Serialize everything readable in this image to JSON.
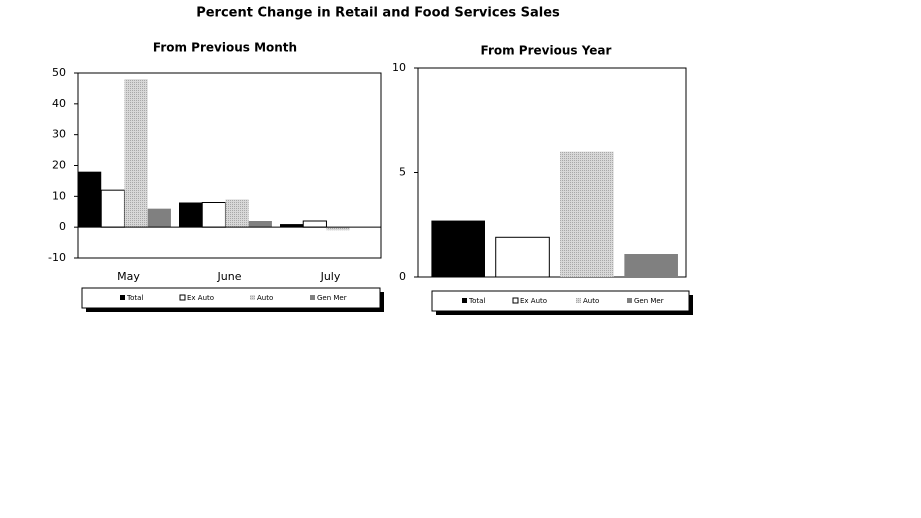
{
  "title": "Percent Change in Retail and Food Services Sales",
  "chart_data": [
    {
      "type": "bar",
      "title": "From Previous Month",
      "categories": [
        "May",
        "June",
        "July"
      ],
      "series": [
        {
          "name": "Total",
          "color": "#000000",
          "values": [
            18,
            8,
            1
          ]
        },
        {
          "name": "Ex Auto",
          "color": "#ffffff",
          "values": [
            12,
            8,
            2
          ]
        },
        {
          "name": "Auto",
          "color": "#c8c8c8",
          "values": [
            48,
            9,
            -1
          ]
        },
        {
          "name": "Gen Mer",
          "color": "#808080",
          "values": [
            6,
            2,
            0
          ]
        }
      ],
      "ylim": [
        -10,
        50
      ],
      "yticks": [
        -10,
        0,
        10,
        20,
        30,
        40,
        50
      ],
      "legend": "bottom"
    },
    {
      "type": "bar",
      "title": "From Previous Year",
      "categories": [
        null
      ],
      "series": [
        {
          "name": "Total",
          "color": "#000000",
          "values": [
            2.7
          ]
        },
        {
          "name": "Ex Auto",
          "color": "#ffffff",
          "values": [
            1.9
          ]
        },
        {
          "name": "Auto",
          "color": "#c8c8c8",
          "values": [
            6.0
          ]
        },
        {
          "name": "Gen Mer",
          "color": "#808080",
          "values": [
            1.1
          ]
        }
      ],
      "ylim": [
        0,
        10
      ],
      "yticks": [
        0,
        5,
        10
      ],
      "legend": "bottom"
    }
  ]
}
